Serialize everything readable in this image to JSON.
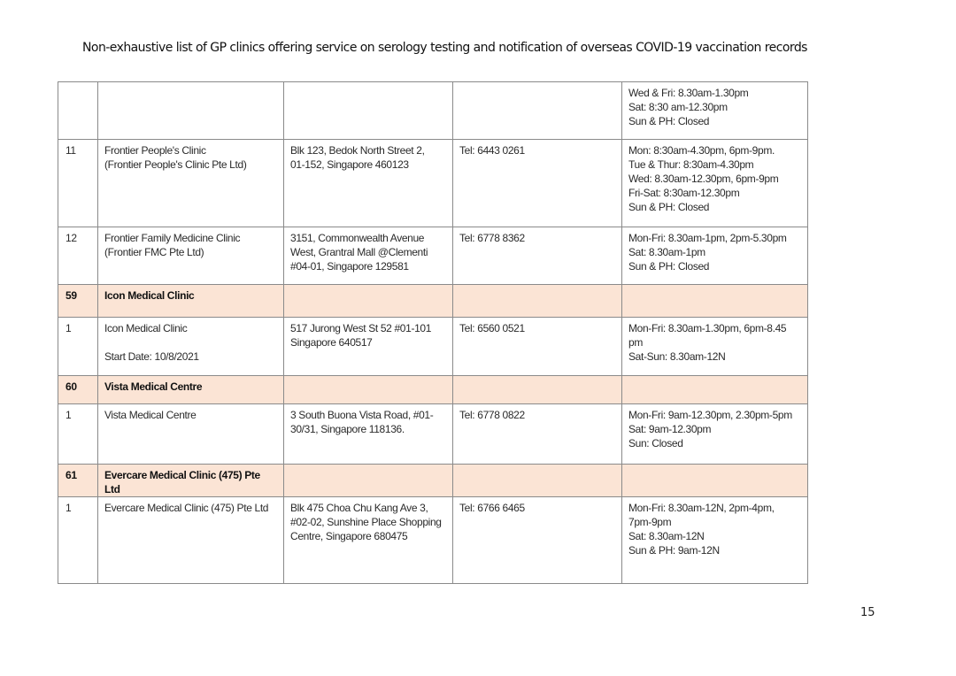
{
  "document": {
    "title": "Non-exhaustive list of GP clinics offering service on serology testing and notification of overseas COVID-19 vaccination records",
    "page_number": "15",
    "group_header_color": "#fbe4d5"
  },
  "table": {
    "rows": [
      {
        "type": "clinic",
        "cells": [
          "",
          "",
          "",
          "",
          "Wed & Fri: 8.30am-1.30pm\nSat: 8:30 am-12.30pm\nSun & PH: Closed"
        ]
      },
      {
        "type": "clinic",
        "cells": [
          "11",
          "Frontier People's Clinic\n(Frontier People's Clinic Pte Ltd)",
          "Blk 123, Bedok North Street 2,\n01-152, Singapore 460123",
          "Tel: 6443 0261",
          "Mon: 8:30am-4.30pm, 6pm-9pm.\nTue & Thur: 8:30am-4.30pm\nWed: 8.30am-12.30pm, 6pm-9pm\nFri-Sat: 8:30am-12.30pm\nSun & PH: Closed"
        ]
      },
      {
        "type": "clinic",
        "cells": [
          "12",
          "Frontier Family Medicine Clinic\n(Frontier FMC Pte Ltd)",
          "3151, Commonwealth Avenue\nWest, Grantral Mall @Clementi\n#04-01, Singapore 129581",
          "Tel: 6778 8362",
          "Mon-Fri: 8.30am-1pm, 2pm-5.30pm\nSat: 8.30am-1pm\nSun & PH: Closed"
        ]
      },
      {
        "type": "group",
        "cells": [
          "59",
          "Icon Medical Clinic",
          "",
          "",
          ""
        ]
      },
      {
        "type": "clinic",
        "cells": [
          "1",
          "Icon Medical Clinic\n\nStart Date: 10/8/2021",
          "517 Jurong West St 52 #01-101\nSingapore 640517",
          "Tel: 6560 0521",
          "Mon-Fri: 8.30am-1.30pm, 6pm-8.45\npm\nSat-Sun: 8.30am-12N"
        ]
      },
      {
        "type": "group",
        "cells": [
          "60",
          "Vista Medical Centre",
          "",
          "",
          ""
        ]
      },
      {
        "type": "clinic",
        "cells": [
          "1",
          "Vista Medical Centre",
          "3 South Buona Vista Road, #01-\n30/31, Singapore 118136.",
          "Tel: 6778 0822",
          "Mon-Fri:  9am-12.30pm, 2.30pm-5pm\nSat: 9am-12.30pm\nSun: Closed"
        ]
      },
      {
        "type": "group",
        "cells": [
          "61",
          "Evercare Medical Clinic (475) Pte\nLtd",
          "",
          "",
          ""
        ]
      },
      {
        "type": "clinic",
        "cells": [
          "1",
          "Evercare Medical Clinic (475) Pte Ltd",
          "Blk 475 Choa Chu Kang Ave 3,\n#02-02, Sunshine Place Shopping\nCentre, Singapore 680475",
          "Tel: 6766 6465",
          "Mon-Fri: 8.30am-12N, 2pm-4pm,\n7pm-9pm\nSat: 8.30am-12N\nSun & PH: 9am-12N"
        ]
      }
    ]
  }
}
